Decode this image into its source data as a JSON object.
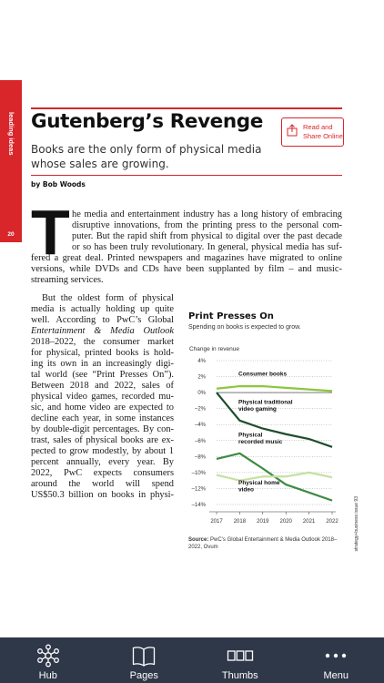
{
  "sidebar": {
    "section": "leading ideas",
    "page_number": "20"
  },
  "header": {
    "title": "Gutenberg’s Revenge",
    "subtitle": "Books are the only form of physical media whose sales are growing.",
    "byline": "by Bob Woods",
    "share_label_1": "Read and",
    "share_label_2": "Share Online"
  },
  "article": {
    "dropcap": "T",
    "lines": [
      "he media and entertainment industry has a long history of embracing",
      "disruptive innovations, from the printing press to the personal com-",
      "puter. But the rapid shift from physical to digital over the past decade",
      "or so has been truly revolutionary. In general, physical media has suf-",
      "fered a great deal. Printed newspapers and magazines have migrated to online",
      "versions, while DVDs and CDs have been supplanted by film – and music-",
      "streaming services."
    ],
    "column_lines": [
      "But the oldest form of physical",
      "media is actually holding up quite",
      "well. According to PwC’s Global",
      "Entertainment & Media Outlook",
      "2018–2022, the consumer market",
      "for physical, printed books is hold-",
      "ing its own in an increasingly digi-",
      "tal world (see “Print Presses On”).",
      "Between 2018 and 2022, sales of",
      "physical video games, recorded mu-",
      "sic, and home video are expected to",
      "decline each year, in some instances",
      "by double-digit percentages. By con-",
      "trast, sales of physical books are ex-",
      "pected to grow modestly, by about 1",
      "percent annually, every year. By",
      "2022, PwC expects consumers",
      "around the world will spend",
      "US$50.3 billion on books in physi-"
    ]
  },
  "chart": {
    "title": "Print Presses On",
    "subtitle": "Spending on books is expected to grow.",
    "source_label": "Source:",
    "source_text": "PwC’s Global Entertainment & Media Outlook 2018–2022, Ovum"
  },
  "chart_data": {
    "type": "line",
    "title": "Print Presses On",
    "subtitle": "Spending on books is expected to grow.",
    "ylabel": "Change in revenue",
    "x": [
      2017,
      2018,
      2019,
      2020,
      2021,
      2022
    ],
    "ylim": [
      -14,
      4
    ],
    "yticks": [
      "4%",
      "2%",
      "0%",
      "–2%",
      "–4%",
      "–6%",
      "–8%",
      "–10%",
      "–12%",
      "–14%"
    ],
    "xticks": [
      "2017",
      "2018",
      "2019",
      "2020",
      "2021",
      "2022"
    ],
    "grid": true,
    "series": [
      {
        "name": "Consumer books",
        "color": "#8cc63f",
        "values": [
          0.5,
          0.8,
          0.8,
          0.6,
          0.4,
          0.2
        ]
      },
      {
        "name": "Physical traditional video gaming",
        "color": "#1e4d2b",
        "values": [
          0,
          -3.5,
          -4.5,
          -5.2,
          -5.8,
          -6.8
        ]
      },
      {
        "name": "Physical recorded music",
        "color": "#3e8a43",
        "values": [
          -8.3,
          -7.6,
          -9.5,
          -11.5,
          -12.5,
          -13.5
        ]
      },
      {
        "name": "Physical home video",
        "color": "#c5e0a3",
        "values": [
          -10.3,
          -11,
          -10.5,
          -10.5,
          -10,
          -10.6
        ]
      }
    ],
    "series_labels": [
      [
        "Consumer books"
      ],
      [
        "Physical traditional",
        "video gaming"
      ],
      [
        "Physical",
        "recorded music"
      ],
      [
        "Physical home",
        "video"
      ]
    ]
  },
  "credit": "strategy+business issue 93",
  "tabbar": {
    "tabs": [
      {
        "label": "Hub",
        "icon": "hub-icon"
      },
      {
        "label": "Pages",
        "icon": "book-icon"
      },
      {
        "label": "Thumbs",
        "icon": "thumbnails-icon"
      },
      {
        "label": "Menu",
        "icon": "more-icon"
      }
    ]
  }
}
